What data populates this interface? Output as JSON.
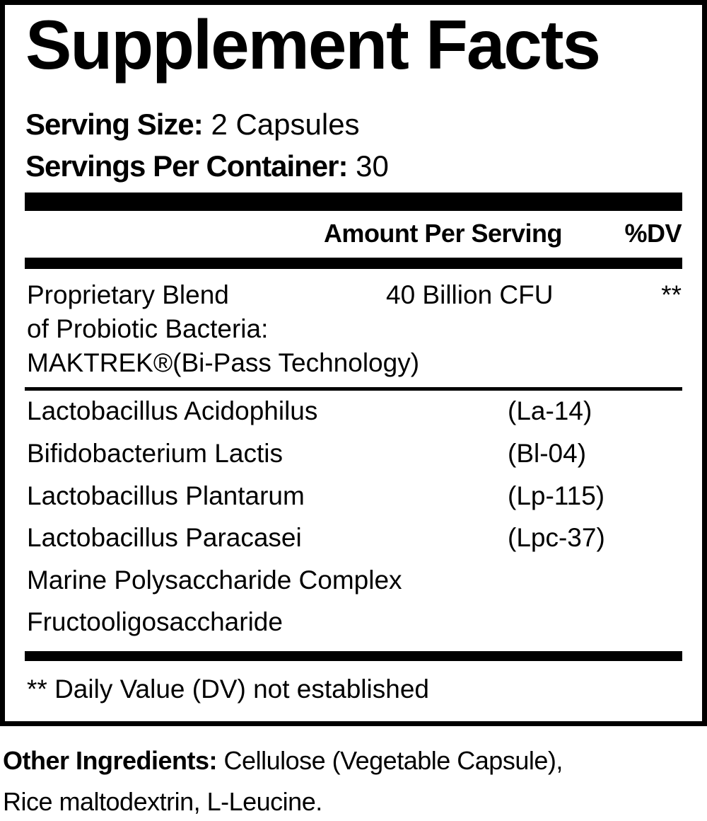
{
  "title": "Supplement Facts",
  "serving_size": {
    "label": "Serving Size:",
    "value": "2 Capsules"
  },
  "servings_per_container": {
    "label": "Servings Per Container:",
    "value": "30"
  },
  "columns": {
    "amount": "Amount Per Serving",
    "dv": "%DV"
  },
  "blend": {
    "line1": "Proprietary Blend",
    "line2": "of Probiotic Bacteria:",
    "line3": "MAKTREK®(Bi-Pass Technology)",
    "amount": "40 Billion CFU",
    "dv": "**"
  },
  "ingredients": [
    {
      "name": "Lactobacillus Acidophilus",
      "strain": "(La-14)"
    },
    {
      "name": "Bifidobacterium Lactis",
      "strain": "(Bl-04)"
    },
    {
      "name": "Lactobacillus Plantarum",
      "strain": "(Lp-115)"
    },
    {
      "name": "Lactobacillus Paracasei",
      "strain": "(Lpc-37)"
    },
    {
      "name": "Marine Polysaccharide Complex",
      "strain": ""
    },
    {
      "name": "Fructooligosaccharide",
      "strain": ""
    }
  ],
  "footnote": "** Daily Value (DV) not established",
  "other_ingredients": {
    "label": "Other Ingredients:",
    "line1": "Cellulose (Vegetable Capsule),",
    "line2": "Rice maltodextrin, L-Leucine."
  }
}
